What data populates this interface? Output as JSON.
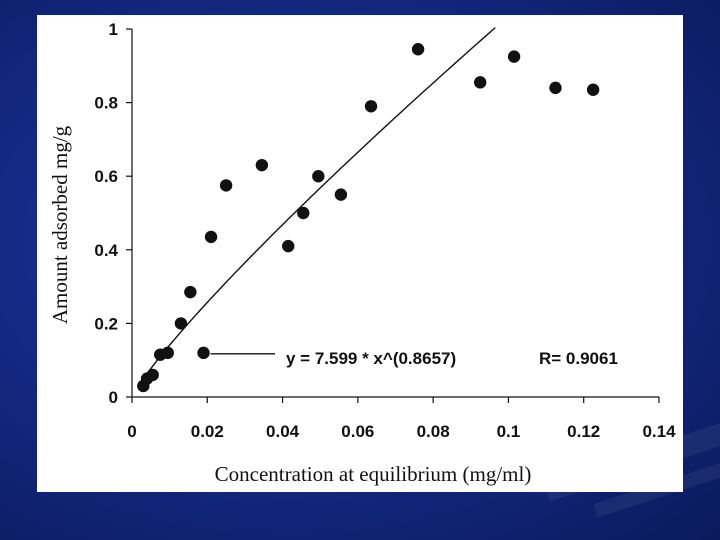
{
  "chart_data": {
    "type": "scatter",
    "xlabel": "Concentration at equilibrium (mg/ml)",
    "ylabel": "Amount adsorbed mg/g",
    "xlim": [
      0,
      0.14
    ],
    "ylim": [
      0,
      1
    ],
    "x_ticks": [
      "0",
      "0.02",
      "0.04",
      "0.06",
      "0.08",
      "0.1",
      "0.12",
      "0.14"
    ],
    "y_ticks": [
      "0",
      "0.2",
      "0.4",
      "0.6",
      "0.8",
      "1"
    ],
    "grid": false,
    "points": [
      {
        "x": 0.003,
        "y": 0.03
      },
      {
        "x": 0.004,
        "y": 0.05
      },
      {
        "x": 0.0055,
        "y": 0.06
      },
      {
        "x": 0.0075,
        "y": 0.115
      },
      {
        "x": 0.0095,
        "y": 0.12
      },
      {
        "x": 0.013,
        "y": 0.2
      },
      {
        "x": 0.0155,
        "y": 0.285
      },
      {
        "x": 0.019,
        "y": 0.12
      },
      {
        "x": 0.021,
        "y": 0.435
      },
      {
        "x": 0.025,
        "y": 0.575
      },
      {
        "x": 0.0345,
        "y": 0.63
      },
      {
        "x": 0.0415,
        "y": 0.41
      },
      {
        "x": 0.0455,
        "y": 0.5
      },
      {
        "x": 0.0495,
        "y": 0.6
      },
      {
        "x": 0.0555,
        "y": 0.55
      },
      {
        "x": 0.0635,
        "y": 0.79
      },
      {
        "x": 0.076,
        "y": 0.945
      },
      {
        "x": 0.0925,
        "y": 0.855
      },
      {
        "x": 0.1015,
        "y": 0.925
      },
      {
        "x": 0.1125,
        "y": 0.84
      },
      {
        "x": 0.1225,
        "y": 0.835
      }
    ],
    "fit": {
      "equation": "y = 7.599 * x^(0.8657)",
      "r_label": "R= 0.9061",
      "coefficient": 7.599,
      "exponent": 0.8657,
      "x_range": [
        0.003,
        0.0965
      ]
    },
    "colors": {
      "points": "#111111",
      "line": "#111111",
      "background": "#ffffff"
    }
  }
}
